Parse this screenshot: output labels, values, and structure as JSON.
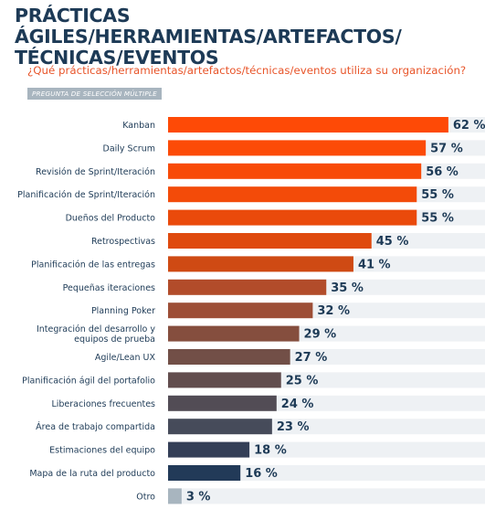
{
  "header": {
    "title_line1": "PRÁCTICAS ÁGILES/HERRAMIENTAS/ARTEFACTOS/",
    "title_line2": "TÉCNICAS/EVENTOS",
    "question": "¿Qué prácticas/herramientas/artefactos/técnicas/eventos utiliza su organización?",
    "badge": "PREGUNTA DE SELECCIÓN MÚLTIPLE"
  },
  "chart_data": {
    "type": "bar",
    "orientation": "horizontal",
    "title": "PRÁCTICAS ÁGILES/HERRAMIENTAS/ARTEFACTOS/TÉCNICAS/EVENTOS",
    "subtitle": "¿Qué prácticas/herramientas/artefactos/técnicas/eventos utiliza su organización?",
    "categories": [
      "Kanban",
      "Daily Scrum",
      "Revisión de Sprint/Iteración",
      "Planificación de Sprint/Iteración",
      "Dueños del Producto",
      "Retrospectivas",
      "Planificación de las entregas",
      "Pequeñas iteraciones",
      "Planning Poker",
      "Integración del desarrollo y equipos de prueba",
      "Agile/Lean UX",
      "Planificación ágil del portafolio",
      "Liberaciones frecuentes",
      "Área de trabajo compartida",
      "Estimaciones del equipo",
      "Mapa de la ruta del producto",
      "Otro"
    ],
    "category_lines": [
      [
        "Kanban"
      ],
      [
        "Daily Scrum"
      ],
      [
        "Revisión de Sprint/Iteración"
      ],
      [
        "Planificación de Sprint/Iteración"
      ],
      [
        "Dueños del Producto"
      ],
      [
        "Retrospectivas"
      ],
      [
        "Planificación de las entregas"
      ],
      [
        "Pequeñas iteraciones"
      ],
      [
        "Planning Poker"
      ],
      [
        "Integración del desarrollo y",
        "equipos de prueba"
      ],
      [
        "Agile/Lean UX"
      ],
      [
        "Planificación ágil del portafolio"
      ],
      [
        "Liberaciones frecuentes"
      ],
      [
        "Área de trabajo compartida"
      ],
      [
        "Estimaciones del equipo"
      ],
      [
        "Mapa de la ruta del producto"
      ],
      [
        "Otro"
      ]
    ],
    "values": [
      62,
      57,
      56,
      55,
      55,
      45,
      41,
      35,
      32,
      29,
      27,
      25,
      24,
      23,
      18,
      16,
      3
    ],
    "value_labels": [
      "62 %",
      "57 %",
      "56 %",
      "55 %",
      "55 %",
      "45 %",
      "41 %",
      "35 %",
      "32 %",
      "29 %",
      "27 %",
      "25 %",
      "24 %",
      "23 %",
      "18 %",
      "16 %",
      "3 %"
    ],
    "unit": "%",
    "xlim": [
      0,
      100
    ],
    "grid": false,
    "legend": "none",
    "colors": [
      "#fe4a06",
      "#fc4b07",
      "#f84b08",
      "#f34b09",
      "#ea4a0b",
      "#df4a0e",
      "#cf4a13",
      "#b24c2a",
      "#9d4e36",
      "#854e3e",
      "#724f47",
      "#624d4e",
      "#524c55",
      "#464b5a",
      "#343f57",
      "#223a58",
      "#a8b5bf"
    ]
  }
}
